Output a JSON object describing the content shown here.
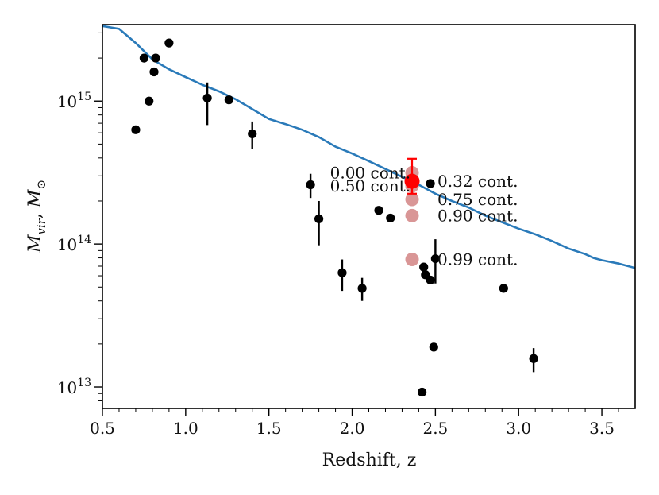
{
  "chart_data": {
    "type": "scatter",
    "title": "",
    "xlabel": "Redshift, z",
    "ylabel_parts": {
      "base": "M",
      "sub1": "vir",
      "sep": ", ",
      "base2": "M",
      "sub2": "⊙"
    },
    "xlim": [
      0.5,
      3.7
    ],
    "ylim_log10": [
      12.85,
      15.535
    ],
    "x_ticks": [
      0.5,
      1.0,
      1.5,
      2.0,
      2.5,
      3.0,
      3.5
    ],
    "x_tick_labels": [
      "0.5",
      "1.0",
      "1.5",
      "2.0",
      "2.5",
      "3.0",
      "3.5"
    ],
    "y_major_ticks_exp": [
      13,
      14,
      15
    ],
    "y_tick_base": "10",
    "y_tick_exps": [
      "13",
      "14",
      "15"
    ],
    "curve": {
      "name": "threshold curve",
      "color": "#2a7ab9",
      "x": [
        0.5,
        0.6,
        0.7,
        0.8,
        0.9,
        1.0,
        1.1,
        1.2,
        1.3,
        1.4,
        1.5,
        1.6,
        1.7,
        1.8,
        1.9,
        2.0,
        2.1,
        2.2,
        2.3,
        2.4,
        2.5,
        2.6,
        2.7,
        2.8,
        2.9,
        3.0,
        3.1,
        3.2,
        3.3,
        3.4,
        3.45,
        3.5,
        3.6,
        3.7
      ],
      "y": [
        3350000000000000.0,
        3200000000000000.0,
        2550000000000000.0,
        1960000000000000.0,
        1670000000000000.0,
        1470000000000000.0,
        1300000000000000.0,
        1170000000000000.0,
        1030000000000000.0,
        880000000000000.0,
        750000000000000.0,
        690000000000000.0,
        630000000000000.0,
        560000000000000.0,
        480000000000000.0,
        430000000000000.0,
        380000000000000.0,
        335000000000000.0,
        295000000000000.0,
        260000000000000.0,
        225000000000000.0,
        200000000000000.0,
        180000000000000.0,
        158000000000000.0,
        142000000000000.0,
        128000000000000.0,
        117000000000000.0,
        105000000000000.0,
        93000000000000.0,
        85000000000000.0,
        80000000000000.0,
        77000000000000.0,
        73000000000000.0,
        68000000000000.0
      ]
    },
    "points": [
      {
        "z": 0.7,
        "m": 630000000000000.0
      },
      {
        "z": 0.75,
        "m": 2000000000000000.0
      },
      {
        "z": 0.78,
        "m": 1000000000000000.0
      },
      {
        "z": 0.81,
        "m": 1600000000000000.0
      },
      {
        "z": 0.82,
        "m": 2000000000000000.0
      },
      {
        "z": 0.9,
        "m": 2550000000000000.0
      },
      {
        "z": 1.13,
        "m": 1050000000000000.0,
        "lo": 680000000000000.0,
        "hi": 1350000000000000.0
      },
      {
        "z": 1.26,
        "m": 1020000000000000.0
      },
      {
        "z": 1.4,
        "m": 590000000000000.0,
        "lo": 460000000000000.0,
        "hi": 720000000000000.0
      },
      {
        "z": 1.75,
        "m": 260000000000000.0,
        "lo": 210000000000000.0,
        "hi": 310000000000000.0
      },
      {
        "z": 1.8,
        "m": 150000000000000.0,
        "lo": 98000000000000.0,
        "hi": 200000000000000.0
      },
      {
        "z": 1.94,
        "m": 63000000000000.0,
        "lo": 47000000000000.0,
        "hi": 78000000000000.0
      },
      {
        "z": 2.06,
        "m": 49000000000000.0,
        "lo": 40000000000000.0,
        "hi": 58000000000000.0
      },
      {
        "z": 2.16,
        "m": 172000000000000.0
      },
      {
        "z": 2.23,
        "m": 152000000000000.0
      },
      {
        "z": 2.42,
        "m": 9200000000000.0
      },
      {
        "z": 2.43,
        "m": 69000000000000.0
      },
      {
        "z": 2.44,
        "m": 61000000000000.0
      },
      {
        "z": 2.47,
        "m": 56000000000000.0
      },
      {
        "z": 2.47,
        "m": 265000000000000.0
      },
      {
        "z": 2.49,
        "m": 19000000000000.0
      },
      {
        "z": 2.5,
        "m": 79000000000000.0,
        "lo": 53000000000000.0,
        "hi": 108000000000000.0
      },
      {
        "z": 2.91,
        "m": 49000000000000.0
      },
      {
        "z": 3.09,
        "m": 15800000000000.0,
        "lo": 12700000000000.0,
        "hi": 18700000000000.0
      }
    ],
    "highlight": {
      "z": 2.36,
      "m": 275000000000000.0,
      "lo": 225000000000000.0,
      "hi": 395000000000000.0,
      "color": "#ff0000",
      "contamination": [
        {
          "m": 315000000000000.0,
          "label": "0.00 cont.",
          "side": "left"
        },
        {
          "m": 275000000000000.0,
          "label": "0.32 cont.",
          "side": "right"
        },
        {
          "m": 255000000000000.0,
          "label": "0.50 cont.",
          "side": "left"
        },
        {
          "m": 205000000000000.0,
          "label": "0.75 cont.",
          "side": "right"
        },
        {
          "m": 158000000000000.0,
          "label": "0.90 cont.",
          "side": "right"
        },
        {
          "m": 78000000000000.0,
          "label": "0.99 cont.",
          "side": "right"
        }
      ],
      "cont_color": "#c96a6a"
    }
  }
}
